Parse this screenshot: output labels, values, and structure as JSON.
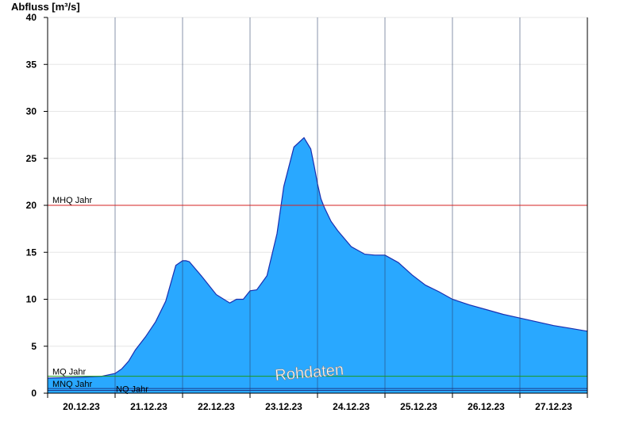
{
  "chart_data": {
    "type": "area",
    "title": "",
    "ylabel": "Abfluss [m³/s]",
    "xlabel": "",
    "ylim": [
      0,
      40
    ],
    "yticks": [
      0,
      5,
      10,
      15,
      20,
      25,
      30,
      35,
      40
    ],
    "xlim": [
      0,
      8
    ],
    "x_tick_labels": [
      "20.12.23",
      "21.12.23",
      "22.12.23",
      "23.12.23",
      "24.12.23",
      "25.12.23",
      "26.12.23",
      "27.12.23"
    ],
    "grid": "horizontal",
    "series": [
      {
        "name": "",
        "color": "#29a8ff",
        "x": [
          0,
          0.5,
          0.8,
          1.0,
          1.1,
          1.2,
          1.3,
          1.45,
          1.6,
          1.75,
          1.9,
          2.0,
          2.05,
          2.1,
          2.3,
          2.5,
          2.7,
          2.8,
          2.9,
          3.0,
          3.1,
          3.25,
          3.4,
          3.5,
          3.65,
          3.8,
          3.9,
          3.95,
          4.0,
          4.05,
          4.1,
          4.2,
          4.3,
          4.5,
          4.7,
          4.85,
          5.0,
          5.2,
          5.4,
          5.6,
          5.8,
          6.0,
          6.25,
          6.5,
          6.75,
          7.0,
          7.25,
          7.5,
          7.75,
          8.0
        ],
        "y": [
          1.6,
          1.7,
          1.8,
          2.1,
          2.6,
          3.4,
          4.6,
          6.0,
          7.6,
          9.8,
          13.6,
          14.1,
          14.1,
          14.0,
          12.3,
          10.5,
          9.6,
          10.0,
          10.0,
          10.9,
          11.0,
          12.5,
          17.0,
          22.0,
          26.2,
          27.2,
          26.0,
          24.2,
          22.3,
          20.7,
          19.8,
          18.3,
          17.3,
          15.6,
          14.8,
          14.7,
          14.7,
          13.9,
          12.6,
          11.5,
          10.8,
          10.0,
          9.4,
          8.9,
          8.4,
          8.0,
          7.6,
          7.2,
          6.9,
          6.6
        ]
      }
    ],
    "reference_lines": [
      {
        "label": "MHQ Jahr",
        "value": 20.0,
        "color": "#d62020"
      },
      {
        "label": "MQ Jahr",
        "value": 1.8,
        "color": "#1a9a1a"
      },
      {
        "label": "MNQ Jahr",
        "value": 0.5,
        "color": "#1e3a8a"
      },
      {
        "label": "NQ Jahr",
        "value": 0.3,
        "color": "#1e3a8a"
      }
    ],
    "annotations": [
      {
        "text": "Rohdaten"
      }
    ]
  }
}
